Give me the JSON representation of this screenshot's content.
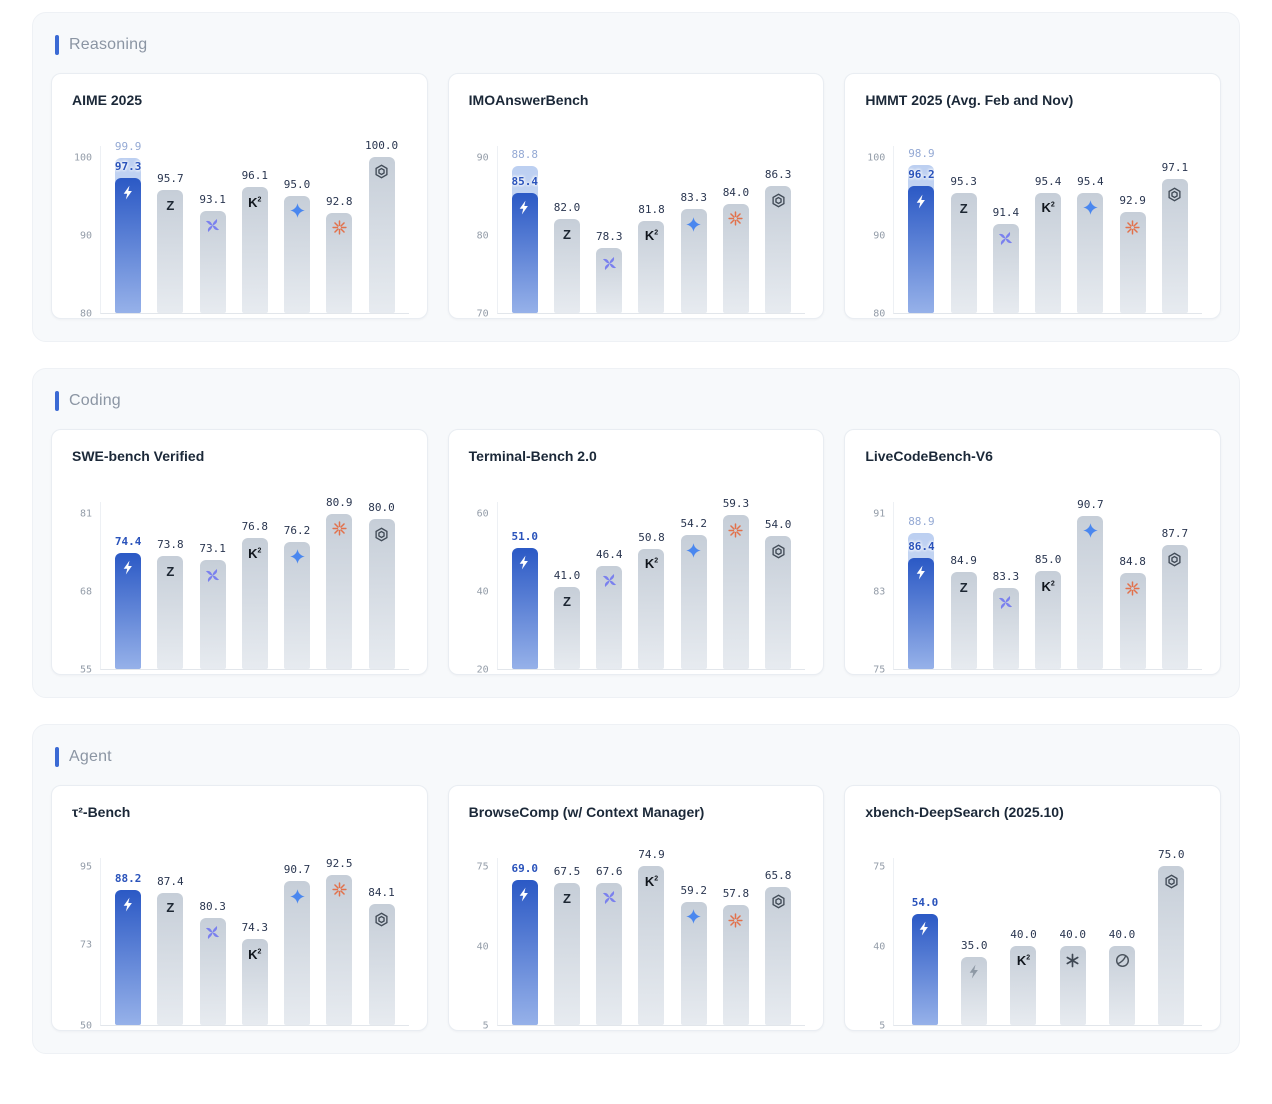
{
  "accent_color": "#3b6ad4",
  "highlight_bar_color": "#2b59c5",
  "sections": [
    {
      "label": "Reasoning",
      "chart_ids": [
        0,
        1,
        2
      ]
    },
    {
      "label": "Coding",
      "chart_ids": [
        3,
        4,
        5
      ]
    },
    {
      "label": "Agent",
      "chart_ids": [
        6,
        7,
        8
      ]
    }
  ],
  "chart_data": [
    {
      "type": "bar",
      "title": "AIME 2025",
      "ylim": [
        80,
        101.5
      ],
      "yticks": [
        100,
        90,
        80
      ],
      "grid": false,
      "bars": [
        {
          "icon": "bolt",
          "value": 97.3,
          "ghost": 99.9,
          "highlight": true
        },
        {
          "icon": "z",
          "value": 95.7
        },
        {
          "icon": "pinwheel",
          "value": 93.1
        },
        {
          "icon": "k2",
          "value": 96.1
        },
        {
          "icon": "star4",
          "value": 95.0
        },
        {
          "icon": "burst",
          "value": 92.8
        },
        {
          "icon": "openai",
          "value": 100.0
        }
      ]
    },
    {
      "type": "bar",
      "title": "IMOAnswerBench",
      "ylim": [
        70,
        91.5
      ],
      "yticks": [
        90,
        80,
        70
      ],
      "grid": false,
      "bars": [
        {
          "icon": "bolt",
          "value": 85.4,
          "ghost": 88.8,
          "highlight": true
        },
        {
          "icon": "z",
          "value": 82.0
        },
        {
          "icon": "pinwheel",
          "value": 78.3
        },
        {
          "icon": "k2",
          "value": 81.8
        },
        {
          "icon": "star4",
          "value": 83.3
        },
        {
          "icon": "burst",
          "value": 84.0
        },
        {
          "icon": "openai",
          "value": 86.3
        }
      ]
    },
    {
      "type": "bar",
      "title": "HMMT 2025 (Avg. Feb and Nov)",
      "ylim": [
        80,
        101.5
      ],
      "yticks": [
        100,
        90,
        80
      ],
      "grid": false,
      "bars": [
        {
          "icon": "bolt",
          "value": 96.2,
          "ghost": 98.9,
          "highlight": true
        },
        {
          "icon": "z",
          "value": 95.3
        },
        {
          "icon": "pinwheel",
          "value": 91.4
        },
        {
          "icon": "k2",
          "value": 95.4
        },
        {
          "icon": "star4",
          "value": 95.4
        },
        {
          "icon": "burst",
          "value": 92.9
        },
        {
          "icon": "openai",
          "value": 97.1
        }
      ]
    },
    {
      "type": "bar",
      "title": "SWE-bench Verified",
      "ylim": [
        55,
        83
      ],
      "yticks": [
        81,
        68,
        55
      ],
      "grid": false,
      "bars": [
        {
          "icon": "bolt",
          "value": 74.4,
          "highlight": true
        },
        {
          "icon": "z",
          "value": 73.8
        },
        {
          "icon": "pinwheel",
          "value": 73.1
        },
        {
          "icon": "k2",
          "value": 76.8
        },
        {
          "icon": "star4",
          "value": 76.2
        },
        {
          "icon": "burst",
          "value": 80.9
        },
        {
          "icon": "openai",
          "value": 80.0
        }
      ]
    },
    {
      "type": "bar",
      "title": "Terminal-Bench 2.0",
      "ylim": [
        20,
        63
      ],
      "yticks": [
        60,
        40,
        20
      ],
      "grid": false,
      "bars": [
        {
          "icon": "bolt",
          "value": 51.0,
          "highlight": true
        },
        {
          "icon": "z",
          "value": 41.0
        },
        {
          "icon": "pinwheel",
          "value": 46.4
        },
        {
          "icon": "k2",
          "value": 50.8
        },
        {
          "icon": "star4",
          "value": 54.2
        },
        {
          "icon": "burst",
          "value": 59.3
        },
        {
          "icon": "openai",
          "value": 54.0
        }
      ]
    },
    {
      "type": "bar",
      "title": "LiveCodeBench-V6",
      "ylim": [
        75,
        92.2
      ],
      "yticks": [
        91,
        83,
        75
      ],
      "grid": false,
      "bars": [
        {
          "icon": "bolt",
          "value": 86.4,
          "ghost": 88.9,
          "highlight": true
        },
        {
          "icon": "z",
          "value": 84.9
        },
        {
          "icon": "pinwheel",
          "value": 83.3
        },
        {
          "icon": "k2",
          "value": 85.0
        },
        {
          "icon": "star4",
          "value": 90.7
        },
        {
          "icon": "burst",
          "value": 84.8
        },
        {
          "icon": "openai",
          "value": 87.7
        }
      ]
    },
    {
      "type": "bar",
      "title": "τ²-Bench",
      "ylim": [
        50,
        97.5
      ],
      "yticks": [
        95,
        73,
        50
      ],
      "grid": false,
      "bars": [
        {
          "icon": "bolt",
          "value": 88.2,
          "highlight": true
        },
        {
          "icon": "z",
          "value": 87.4
        },
        {
          "icon": "pinwheel",
          "value": 80.3
        },
        {
          "icon": "k2",
          "value": 74.3
        },
        {
          "icon": "star4",
          "value": 90.7
        },
        {
          "icon": "burst",
          "value": 92.5
        },
        {
          "icon": "openai",
          "value": 84.1
        }
      ]
    },
    {
      "type": "bar",
      "title": "BrowseComp (w/ Context Manager)",
      "ylim": [
        5,
        79
      ],
      "yticks": [
        75,
        40,
        5
      ],
      "grid": false,
      "bars": [
        {
          "icon": "bolt",
          "value": 69.0,
          "highlight": true
        },
        {
          "icon": "z",
          "value": 67.5
        },
        {
          "icon": "pinwheel",
          "value": 67.6
        },
        {
          "icon": "k2",
          "value": 74.9
        },
        {
          "icon": "star4",
          "value": 59.2
        },
        {
          "icon": "burst",
          "value": 57.8
        },
        {
          "icon": "openai",
          "value": 65.8
        }
      ]
    },
    {
      "type": "bar",
      "title": "xbench-DeepSearch (2025.10)",
      "ylim": [
        5,
        79
      ],
      "yticks": [
        75,
        40,
        5
      ],
      "grid": false,
      "bars": [
        {
          "icon": "bolt",
          "value": 54.0,
          "highlight": true
        },
        {
          "icon": "spark",
          "value": 35.0
        },
        {
          "icon": "k2",
          "value": 40.0
        },
        {
          "icon": "asterisk",
          "value": 40.0
        },
        {
          "icon": "swirl",
          "value": 40.0
        },
        {
          "icon": "openai",
          "value": 75.0
        }
      ]
    }
  ]
}
